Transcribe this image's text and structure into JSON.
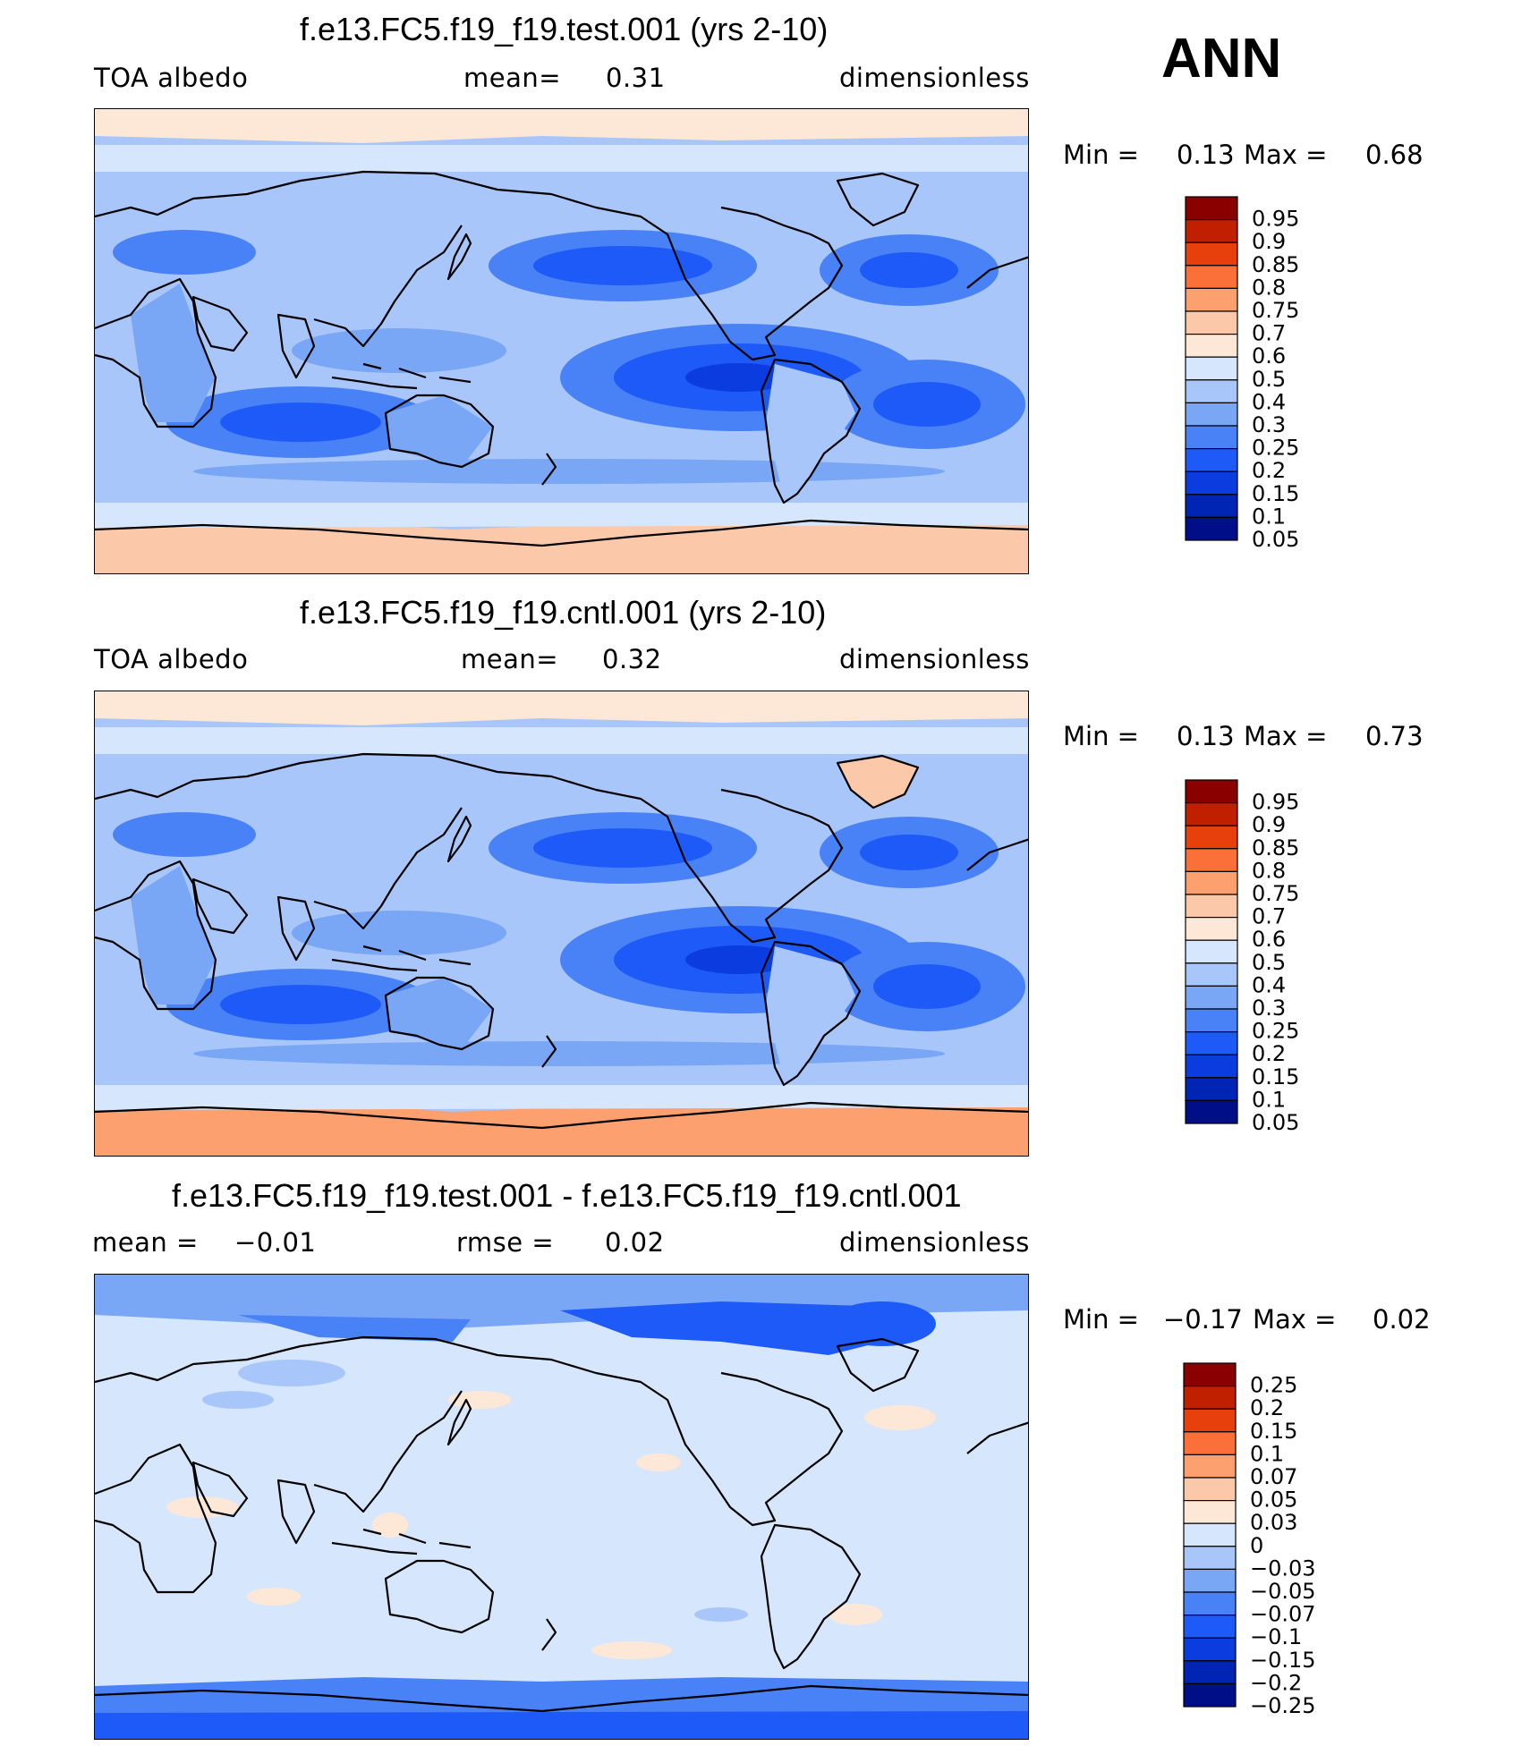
{
  "season": "ANN",
  "colors": {
    "abs_palette": [
      "#000f88",
      "#0024b4",
      "#0a3ce0",
      "#1e5af8",
      "#4882f6",
      "#7aa6f6",
      "#a8c6fa",
      "#d6e6fd",
      "#fde8d8",
      "#fcc8aa",
      "#fca070",
      "#fa7038",
      "#e8400c",
      "#c02000",
      "#8a0000"
    ],
    "diff_palette": [
      "#000f88",
      "#0024b4",
      "#0a3ce0",
      "#1e5af8",
      "#4882f6",
      "#7aa6f6",
      "#a8c6fa",
      "#d6e6fd",
      "#fde8d8",
      "#fcc8aa",
      "#fca070",
      "#fa7038",
      "#e8400c",
      "#c02000",
      "#8a0000"
    ]
  },
  "panels": [
    {
      "title": "f.e13.FC5.f19_f19.test.001 (yrs 2-10)",
      "left_label": "TOA albedo",
      "mean_label": "mean=",
      "mean_value": "0.31",
      "units": "dimensionless",
      "min_label": "Min =",
      "min_value": "0.13",
      "max_label": "Max =",
      "max_value": "0.68",
      "levels": [
        "0.95",
        "0.9",
        "0.85",
        "0.8",
        "0.75",
        "0.7",
        "0.6",
        "0.5",
        "0.4",
        "0.3",
        "0.25",
        "0.2",
        "0.15",
        "0.1",
        "0.05"
      ]
    },
    {
      "title": "f.e13.FC5.f19_f19.cntl.001 (yrs 2-10)",
      "left_label": "TOA albedo",
      "mean_label": "mean=",
      "mean_value": "0.32",
      "units": "dimensionless",
      "min_label": "Min =",
      "min_value": "0.13",
      "max_label": "Max =",
      "max_value": "0.73",
      "levels": [
        "0.95",
        "0.9",
        "0.85",
        "0.8",
        "0.75",
        "0.7",
        "0.6",
        "0.5",
        "0.4",
        "0.3",
        "0.25",
        "0.2",
        "0.15",
        "0.1",
        "0.05"
      ]
    },
    {
      "title": "f.e13.FC5.f19_f19.test.001 - f.e13.FC5.f19_f19.cntl.001",
      "left_label": "mean =",
      "left_value": "−0.01",
      "rmse_label": "rmse =",
      "rmse_value": "0.02",
      "units": "dimensionless",
      "min_label": "Min =",
      "min_value": "−0.17",
      "max_label": "Max =",
      "max_value": "0.02",
      "levels": [
        "0.25",
        "0.2",
        "0.15",
        "0.1",
        "0.07",
        "0.05",
        "0.03",
        "0",
        "−0.03",
        "−0.05",
        "−0.07",
        "−0.1",
        "−0.15",
        "−0.2",
        "−0.25"
      ]
    }
  ],
  "chart_data": {
    "type": "heatmap",
    "field": "TOA albedo",
    "units": "dimensionless",
    "season": "ANN",
    "maps": [
      {
        "title": "f.e13.FC5.f19_f19.test.001 (yrs 2-10)",
        "mean": 0.31,
        "min": 0.13,
        "max": 0.68,
        "contour_levels": [
          0.05,
          0.1,
          0.15,
          0.2,
          0.25,
          0.3,
          0.4,
          0.5,
          0.6,
          0.7,
          0.75,
          0.8,
          0.85,
          0.9,
          0.95
        ]
      },
      {
        "title": "f.e13.FC5.f19_f19.cntl.001 (yrs 2-10)",
        "mean": 0.32,
        "min": 0.13,
        "max": 0.73,
        "contour_levels": [
          0.05,
          0.1,
          0.15,
          0.2,
          0.25,
          0.3,
          0.4,
          0.5,
          0.6,
          0.7,
          0.75,
          0.8,
          0.85,
          0.9,
          0.95
        ]
      },
      {
        "title": "f.e13.FC5.f19_f19.test.001 - f.e13.FC5.f19_f19.cntl.001",
        "mean": -0.01,
        "rmse": 0.02,
        "min": -0.17,
        "max": 0.02,
        "contour_levels": [
          -0.25,
          -0.2,
          -0.15,
          -0.1,
          -0.07,
          -0.05,
          -0.03,
          0,
          0.03,
          0.05,
          0.07,
          0.1,
          0.15,
          0.2,
          0.25
        ]
      }
    ]
  }
}
